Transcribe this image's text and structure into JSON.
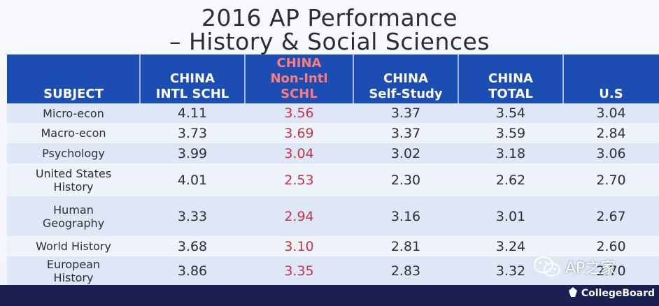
{
  "title": {
    "line1": "2016 AP Performance",
    "line2": "– History & Social Sciences"
  },
  "headers": {
    "subject": "SUBJECT",
    "intl": [
      "CHINA",
      "INTL SCHL"
    ],
    "nonintl": [
      "CHINA",
      "Non-Intl",
      "SCHL"
    ],
    "self": [
      "CHINA",
      "Self-Study"
    ],
    "total": [
      "CHINA",
      "TOTAL"
    ],
    "us": "U.S"
  },
  "rows": [
    {
      "subject": [
        "Micro-econ"
      ],
      "intl": "4.11",
      "nonintl": "3.56",
      "self": "3.37",
      "total": "3.54",
      "us": "3.04"
    },
    {
      "subject": [
        "Macro-econ"
      ],
      "intl": "3.73",
      "nonintl": "3.69",
      "self": "3.37",
      "total": "3.59",
      "us": "2.84"
    },
    {
      "subject": [
        "Psychology"
      ],
      "intl": "3.99",
      "nonintl": "3.04",
      "self": "3.02",
      "total": "3.18",
      "us": "3.06"
    },
    {
      "subject": [
        "United States",
        "History"
      ],
      "intl": "4.01",
      "nonintl": "2.53",
      "self": "2.30",
      "total": "2.62",
      "us": "2.70"
    },
    {
      "subject": [
        "Human",
        "Geography"
      ],
      "intl": "3.33",
      "nonintl": "2.94",
      "self": "3.16",
      "total": "3.01",
      "us": "2.67"
    },
    {
      "subject": [
        "World History"
      ],
      "intl": "3.68",
      "nonintl": "3.10",
      "self": "2.81",
      "total": "3.24",
      "us": "2.60"
    },
    {
      "subject": [
        "European",
        "History"
      ],
      "intl": "3.86",
      "nonintl": "3.35",
      "self": "2.83",
      "total": "3.32",
      "us": "2.70"
    }
  ],
  "colors": {
    "header_bg": "#1b4db3",
    "nonintl_header": "#ff7b7b",
    "nonintl_value": "#c9334a",
    "row_alt": "#dde7f5"
  },
  "watermark": "AP之家",
  "logo": {
    "text": "CollegeBoard",
    "icon": "collegeboard-acorn-icon"
  },
  "watermark_icon": "wechat-icon"
}
